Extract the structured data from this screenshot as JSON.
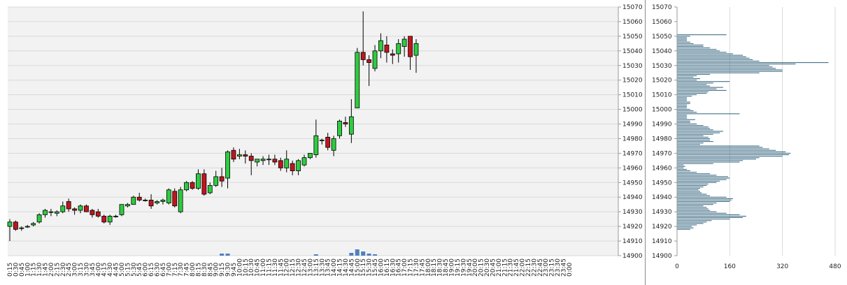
{
  "colors": {
    "plot_bg": "#f2f2f2",
    "grid": "#d9d9d9",
    "up": "#2ecc40",
    "down": "#c0161e",
    "wick": "#000000",
    "volume": "#4f81bd",
    "profile": "#2e5f7a"
  },
  "chart_data": [
    {
      "type": "candlestick",
      "title": "",
      "ylim": [
        14900,
        15070
      ],
      "y_ticks": [
        "14900",
        "14910",
        "14920",
        "14930",
        "14940",
        "14950",
        "14960",
        "14970",
        "14980",
        "14990",
        "15000",
        "15010",
        "15020",
        "15030",
        "15040",
        "15050",
        "15060",
        "15070"
      ],
      "x_ticks": [
        "0:15",
        "0:30",
        "0:45",
        "1:00",
        "1:15",
        "1:30",
        "1:45",
        "2:00",
        "2:15",
        "2:30",
        "2:45",
        "3:00",
        "3:15",
        "3:30",
        "3:45",
        "4:00",
        "4:15",
        "4:30",
        "4:45",
        "5:00",
        "5:15",
        "5:30",
        "5:45",
        "6:00",
        "6:15",
        "6:30",
        "6:45",
        "7:00",
        "7:15",
        "7:30",
        "7:45",
        "8:00",
        "8:15",
        "8:30",
        "8:45",
        "9:00",
        "9:15",
        "9:30",
        "9:45",
        "10:00",
        "10:15",
        "10:30",
        "10:45",
        "11:00",
        "11:15",
        "11:30",
        "11:45",
        "12:00",
        "12:15",
        "12:30",
        "12:45",
        "13:00",
        "13:15",
        "13:30",
        "13:45",
        "14:00",
        "14:15",
        "14:30",
        "14:45",
        "15:00",
        "15:15",
        "15:30",
        "15:45",
        "16:00",
        "16:15",
        "16:30",
        "16:45",
        "17:00",
        "17:15",
        "17:30",
        "17:45",
        "18:00",
        "18:15",
        "18:30",
        "18:45",
        "19:00",
        "19:15",
        "19:30",
        "19:45",
        "20:00",
        "20:15",
        "20:30",
        "20:45",
        "21:00",
        "21:15",
        "21:30",
        "21:45",
        "22:00",
        "22:15",
        "22:30",
        "22:45",
        "23:00",
        "23:15",
        "23:30",
        "23:45",
        "0:00"
      ],
      "candles": [
        {
          "t": "0:15",
          "o": 14920,
          "h": 14925,
          "l": 14910,
          "c": 14923
        },
        {
          "t": "0:30",
          "o": 14923,
          "h": 14924,
          "l": 14917,
          "c": 14918
        },
        {
          "t": "0:45",
          "o": 14919,
          "h": 14920,
          "l": 14917,
          "c": 14919
        },
        {
          "t": "1:00",
          "o": 14920,
          "h": 14921,
          "l": 14919,
          "c": 14920
        },
        {
          "t": "1:15",
          "o": 14921,
          "h": 14923,
          "l": 14920,
          "c": 14922
        },
        {
          "t": "1:30",
          "o": 14923,
          "h": 14929,
          "l": 14922,
          "c": 14928
        },
        {
          "t": "1:45",
          "o": 14928,
          "h": 14932,
          "l": 14926,
          "c": 14931
        },
        {
          "t": "2:00",
          "o": 14930,
          "h": 14932,
          "l": 14927,
          "c": 14930
        },
        {
          "t": "2:15",
          "o": 14929,
          "h": 14931,
          "l": 14927,
          "c": 14930
        },
        {
          "t": "2:30",
          "o": 14930,
          "h": 14937,
          "l": 14929,
          "c": 14934
        },
        {
          "t": "2:45",
          "o": 14937,
          "h": 14939,
          "l": 14930,
          "c": 14932
        },
        {
          "t": "3:00",
          "o": 14932,
          "h": 14933,
          "l": 14928,
          "c": 14931
        },
        {
          "t": "3:15",
          "o": 14931,
          "h": 14935,
          "l": 14929,
          "c": 14934
        },
        {
          "t": "3:30",
          "o": 14934,
          "h": 14935,
          "l": 14930,
          "c": 14930
        },
        {
          "t": "3:45",
          "o": 14931,
          "h": 14932,
          "l": 14926,
          "c": 14928
        },
        {
          "t": "4:00",
          "o": 14930,
          "h": 14932,
          "l": 14926,
          "c": 14927
        },
        {
          "t": "4:15",
          "o": 14927,
          "h": 14928,
          "l": 14922,
          "c": 14923
        },
        {
          "t": "4:30",
          "o": 14923,
          "h": 14928,
          "l": 14921,
          "c": 14927
        },
        {
          "t": "4:45",
          "o": 14927,
          "h": 14928,
          "l": 14926,
          "c": 14927
        },
        {
          "t": "5:00",
          "o": 14928,
          "h": 14935,
          "l": 14927,
          "c": 14935
        },
        {
          "t": "5:15",
          "o": 14934,
          "h": 14936,
          "l": 14933,
          "c": 14935
        },
        {
          "t": "5:30",
          "o": 14935,
          "h": 14941,
          "l": 14935,
          "c": 14940
        },
        {
          "t": "5:45",
          "o": 14940,
          "h": 14943,
          "l": 14937,
          "c": 14938
        },
        {
          "t": "6:00",
          "o": 14938,
          "h": 14939,
          "l": 14937,
          "c": 14938
        },
        {
          "t": "6:15",
          "o": 14938,
          "h": 14942,
          "l": 14932,
          "c": 14934
        },
        {
          "t": "6:30",
          "o": 14936,
          "h": 14938,
          "l": 14935,
          "c": 14937
        },
        {
          "t": "6:45",
          "o": 14937,
          "h": 14939,
          "l": 14935,
          "c": 14938
        },
        {
          "t": "7:00",
          "o": 14936,
          "h": 14946,
          "l": 14935,
          "c": 14945
        },
        {
          "t": "7:15",
          "o": 14944,
          "h": 14946,
          "l": 14933,
          "c": 14934
        },
        {
          "t": "7:30",
          "o": 14930,
          "h": 14947,
          "l": 14929,
          "c": 14945
        },
        {
          "t": "7:45",
          "o": 14945,
          "h": 14951,
          "l": 14944,
          "c": 14950
        },
        {
          "t": "8:00",
          "o": 14950,
          "h": 14951,
          "l": 14945,
          "c": 14946
        },
        {
          "t": "8:15",
          "o": 14946,
          "h": 14959,
          "l": 14945,
          "c": 14956
        },
        {
          "t": "8:30",
          "o": 14956,
          "h": 14959,
          "l": 14941,
          "c": 14942
        },
        {
          "t": "8:45",
          "o": 14943,
          "h": 14950,
          "l": 14942,
          "c": 14948
        },
        {
          "t": "9:00",
          "o": 14948,
          "h": 14958,
          "l": 14947,
          "c": 14954
        },
        {
          "t": "9:15",
          "o": 14954,
          "h": 14960,
          "l": 14947,
          "c": 14951
        },
        {
          "t": "9:30",
          "o": 14953,
          "h": 14972,
          "l": 14946,
          "c": 14971
        },
        {
          "t": "9:45",
          "o": 14972,
          "h": 14974,
          "l": 14964,
          "c": 14966
        },
        {
          "t": "10:00",
          "o": 14968,
          "h": 14973,
          "l": 14966,
          "c": 14969
        },
        {
          "t": "10:15",
          "o": 14969,
          "h": 14972,
          "l": 14963,
          "c": 14968
        },
        {
          "t": "10:30",
          "o": 14968,
          "h": 14970,
          "l": 14955,
          "c": 14965
        },
        {
          "t": "10:45",
          "o": 14964,
          "h": 14966,
          "l": 14961,
          "c": 14966
        },
        {
          "t": "11:00",
          "o": 14965,
          "h": 14968,
          "l": 14962,
          "c": 14966
        },
        {
          "t": "11:15",
          "o": 14966,
          "h": 14969,
          "l": 14962,
          "c": 14966
        },
        {
          "t": "11:30",
          "o": 14966,
          "h": 14969,
          "l": 14962,
          "c": 14964
        },
        {
          "t": "11:45",
          "o": 14965,
          "h": 14967,
          "l": 14958,
          "c": 14960
        },
        {
          "t": "12:00",
          "o": 14960,
          "h": 14972,
          "l": 14957,
          "c": 14966
        },
        {
          "t": "12:15",
          "o": 14963,
          "h": 14965,
          "l": 14955,
          "c": 14958
        },
        {
          "t": "12:30",
          "o": 14958,
          "h": 14966,
          "l": 14955,
          "c": 14965
        },
        {
          "t": "12:45",
          "o": 14962,
          "h": 14969,
          "l": 14961,
          "c": 14967
        },
        {
          "t": "13:00",
          "o": 14967,
          "h": 14970,
          "l": 14966,
          "c": 14970
        },
        {
          "t": "13:15",
          "o": 14969,
          "h": 14993,
          "l": 14967,
          "c": 14982
        },
        {
          "t": "13:30",
          "o": 14979,
          "h": 14980,
          "l": 14976,
          "c": 14979
        },
        {
          "t": "13:45",
          "o": 14981,
          "h": 14984,
          "l": 14972,
          "c": 14974
        },
        {
          "t": "14:00",
          "o": 14972,
          "h": 14982,
          "l": 14968,
          "c": 14980
        },
        {
          "t": "14:15",
          "o": 14982,
          "h": 14993,
          "l": 14980,
          "c": 14992
        },
        {
          "t": "14:30",
          "o": 14991,
          "h": 14995,
          "l": 14988,
          "c": 14990
        },
        {
          "t": "14:45",
          "o": 14983,
          "h": 15007,
          "l": 14977,
          "c": 14995
        },
        {
          "t": "15:00",
          "o": 15001,
          "h": 15042,
          "l": 15001,
          "c": 15039
        },
        {
          "t": "15:15",
          "o": 15039,
          "h": 15067,
          "l": 15030,
          "c": 15034
        },
        {
          "t": "15:30",
          "o": 15034,
          "h": 15037,
          "l": 15016,
          "c": 15032
        },
        {
          "t": "15:45",
          "o": 15028,
          "h": 15044,
          "l": 15026,
          "c": 15040
        },
        {
          "t": "16:00",
          "o": 15040,
          "h": 15052,
          "l": 15035,
          "c": 15047
        },
        {
          "t": "16:15",
          "o": 15044,
          "h": 15050,
          "l": 15032,
          "c": 15039
        },
        {
          "t": "16:30",
          "o": 15038,
          "h": 15041,
          "l": 15031,
          "c": 15037
        },
        {
          "t": "16:45",
          "o": 15038,
          "h": 15048,
          "l": 15032,
          "c": 15045
        },
        {
          "t": "17:00",
          "o": 15043,
          "h": 15050,
          "l": 15036,
          "c": 15048
        },
        {
          "t": "17:15",
          "o": 15050,
          "h": 15050,
          "l": 15027,
          "c": 15036
        },
        {
          "t": "17:30",
          "o": 15037,
          "h": 15048,
          "l": 15025,
          "c": 15045
        }
      ],
      "volume_bars": [
        {
          "t": "9:15",
          "v": 3
        },
        {
          "t": "9:30",
          "v": 3
        },
        {
          "t": "13:15",
          "v": 2
        },
        {
          "t": "14:45",
          "v": 4
        },
        {
          "t": "15:00",
          "v": 9
        },
        {
          "t": "15:15",
          "v": 6
        },
        {
          "t": "15:30",
          "v": 3
        },
        {
          "t": "15:45",
          "v": 2
        }
      ]
    },
    {
      "type": "bar",
      "orientation": "horizontal",
      "xlim": [
        0,
        480
      ],
      "x_ticks": [
        "0",
        "160",
        "320",
        "480"
      ],
      "ylim": [
        14900,
        15070
      ],
      "y_ticks": [
        "14900",
        "14910",
        "14920",
        "14930",
        "14940",
        "14950",
        "14960",
        "14970",
        "14980",
        "14990",
        "15000",
        "15010",
        "15020",
        "15030",
        "15040",
        "15050",
        "15060",
        "15070"
      ],
      "price_step": 1,
      "start_price": 14918,
      "values": [
        40,
        50,
        45,
        60,
        80,
        90,
        105,
        160,
        200,
        210,
        190,
        150,
        120,
        100,
        95,
        90,
        80,
        110,
        120,
        160,
        165,
        170,
        150,
        100,
        90,
        75,
        70,
        65,
        70,
        80,
        90,
        95,
        120,
        130,
        150,
        160,
        155,
        120,
        100,
        60,
        40,
        30,
        20,
        25,
        20,
        110,
        190,
        200,
        240,
        250,
        320,
        340,
        345,
        330,
        300,
        280,
        260,
        250,
        70,
        80,
        110,
        100,
        100,
        95,
        80,
        110,
        130,
        140,
        110,
        100,
        95,
        80,
        60,
        40,
        40,
        55,
        30,
        30,
        30,
        190,
        60,
        50,
        40,
        30,
        30,
        30,
        40,
        40,
        30,
        30,
        30,
        45,
        60,
        90,
        95,
        150,
        120,
        140,
        100,
        90,
        110,
        160,
        60,
        70,
        50,
        60,
        100,
        250,
        320,
        320,
        300,
        290,
        280,
        360,
        460,
        250,
        230,
        220,
        210,
        200,
        170,
        150,
        130,
        120,
        100,
        80,
        80,
        50,
        40,
        30,
        30,
        30,
        40,
        150
      ]
    }
  ]
}
